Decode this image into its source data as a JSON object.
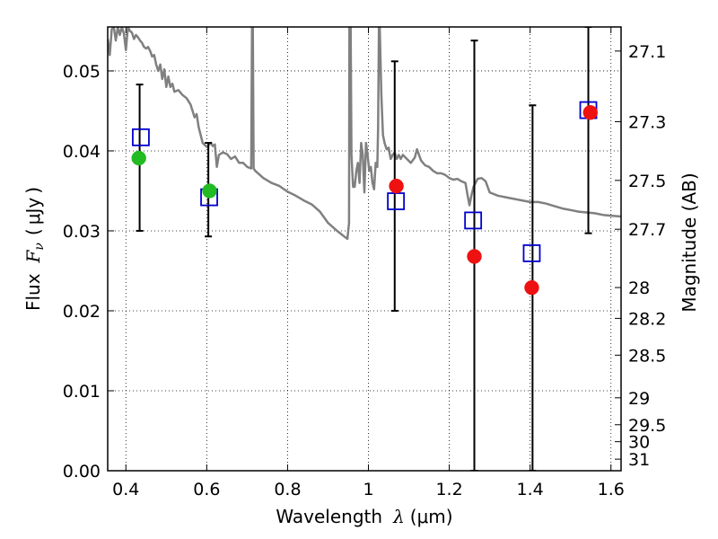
{
  "chart_data": {
    "type": "scatter",
    "title": "",
    "xlabel": "Wavelength",
    "xlabel_symbol": "λ",
    "xlabel_unit": "μm",
    "ylabel": "Flux",
    "ylabel_symbol": "F",
    "ylabel_subscript": "ν",
    "ylabel_unit": "μJy",
    "y2label": "Magnitude (AB)",
    "xlim": [
      0.355,
      1.625
    ],
    "ylim": [
      0.0,
      0.0555
    ],
    "grid": true,
    "grid_style": "dotted",
    "x_ticks": [
      {
        "value": 0.4,
        "label": "0.4"
      },
      {
        "value": 0.6,
        "label": "0.6"
      },
      {
        "value": 0.8,
        "label": "0.8"
      },
      {
        "value": 1.0,
        "label": "1"
      },
      {
        "value": 1.2,
        "label": "1.2"
      },
      {
        "value": 1.4,
        "label": "1.4"
      },
      {
        "value": 1.6,
        "label": "1.6"
      }
    ],
    "y_ticks": [
      {
        "value": 0.0,
        "label": "0.00"
      },
      {
        "value": 0.01,
        "label": "0.01"
      },
      {
        "value": 0.02,
        "label": "0.02"
      },
      {
        "value": 0.03,
        "label": "0.03"
      },
      {
        "value": 0.04,
        "label": "0.04"
      },
      {
        "value": 0.05,
        "label": "0.05"
      }
    ],
    "y2_ticks": [
      {
        "mag": 27.1,
        "label": "27.1"
      },
      {
        "mag": 27.3,
        "label": "27.3"
      },
      {
        "mag": 27.5,
        "label": "27.5"
      },
      {
        "mag": 27.7,
        "label": "27.7"
      },
      {
        "mag": 28,
        "label": "28"
      },
      {
        "mag": 28.2,
        "label": "28.2"
      },
      {
        "mag": 28.5,
        "label": "28.5"
      },
      {
        "mag": 29,
        "label": "29"
      },
      {
        "mag": 29.5,
        "label": "29.5"
      },
      {
        "mag": 30,
        "label": "30"
      },
      {
        "mag": 31,
        "label": "31"
      }
    ],
    "series": [
      {
        "kind": "line",
        "color": "#808080",
        "points": [
          [
            0.355,
            0.054
          ],
          [
            0.36,
            0.052
          ],
          [
            0.365,
            0.0552
          ],
          [
            0.37,
            0.0555
          ],
          [
            0.375,
            0.0538
          ],
          [
            0.38,
            0.0555
          ],
          [
            0.385,
            0.0545
          ],
          [
            0.39,
            0.0555
          ],
          [
            0.395,
            0.0547
          ],
          [
            0.4,
            0.0526
          ],
          [
            0.405,
            0.0555
          ],
          [
            0.41,
            0.055
          ],
          [
            0.415,
            0.0548
          ],
          [
            0.42,
            0.054
          ],
          [
            0.425,
            0.0545
          ],
          [
            0.43,
            0.0542
          ],
          [
            0.435,
            0.0538
          ],
          [
            0.44,
            0.0535
          ],
          [
            0.445,
            0.053
          ],
          [
            0.45,
            0.0528
          ],
          [
            0.455,
            0.053
          ],
          [
            0.46,
            0.0525
          ],
          [
            0.465,
            0.0518
          ],
          [
            0.47,
            0.052
          ],
          [
            0.475,
            0.0508
          ],
          [
            0.48,
            0.05
          ],
          [
            0.485,
            0.0508
          ],
          [
            0.49,
            0.049
          ],
          [
            0.495,
            0.0502
          ],
          [
            0.5,
            0.048
          ],
          [
            0.505,
            0.0493
          ],
          [
            0.51,
            0.048
          ],
          [
            0.515,
            0.0484
          ],
          [
            0.52,
            0.0474
          ],
          [
            0.53,
            0.0476
          ],
          [
            0.54,
            0.047
          ],
          [
            0.55,
            0.0466
          ],
          [
            0.56,
            0.0458
          ],
          [
            0.57,
            0.0442
          ],
          [
            0.575,
            0.0446
          ],
          [
            0.58,
            0.043
          ],
          [
            0.59,
            0.041
          ],
          [
            0.6,
            0.0405
          ],
          [
            0.61,
            0.041
          ],
          [
            0.615,
            0.0406
          ],
          [
            0.62,
            0.0408
          ],
          [
            0.625,
            0.038
          ],
          [
            0.63,
            0.0395
          ],
          [
            0.64,
            0.0398
          ],
          [
            0.65,
            0.0396
          ],
          [
            0.66,
            0.039
          ],
          [
            0.67,
            0.0393
          ],
          [
            0.68,
            0.0385
          ],
          [
            0.69,
            0.0385
          ],
          [
            0.7,
            0.038
          ],
          [
            0.71,
            0.0378
          ],
          [
            0.712,
            0.0555
          ],
          [
            0.714,
            0.0555
          ],
          [
            0.716,
            0.0378
          ],
          [
            0.72,
            0.0375
          ],
          [
            0.74,
            0.0366
          ],
          [
            0.76,
            0.036
          ],
          [
            0.78,
            0.0356
          ],
          [
            0.8,
            0.0349
          ],
          [
            0.82,
            0.0344
          ],
          [
            0.84,
            0.0338
          ],
          [
            0.86,
            0.0333
          ],
          [
            0.88,
            0.0324
          ],
          [
            0.9,
            0.031
          ],
          [
            0.92,
            0.0301
          ],
          [
            0.94,
            0.0293
          ],
          [
            0.948,
            0.029
          ],
          [
            0.952,
            0.031
          ],
          [
            0.953,
            0.0555
          ],
          [
            0.956,
            0.0555
          ],
          [
            0.958,
            0.0395
          ],
          [
            0.962,
            0.0355
          ],
          [
            0.966,
            0.0355
          ],
          [
            0.97,
            0.0375
          ],
          [
            0.974,
            0.0385
          ],
          [
            0.978,
            0.036
          ],
          [
            0.982,
            0.041
          ],
          [
            0.986,
            0.0395
          ],
          [
            0.99,
            0.0348
          ],
          [
            0.994,
            0.041
          ],
          [
            0.998,
            0.0395
          ],
          [
            1.002,
            0.0375
          ],
          [
            1.006,
            0.038
          ],
          [
            1.01,
            0.036
          ],
          [
            1.014,
            0.0352
          ],
          [
            1.018,
            0.0385
          ],
          [
            1.022,
            0.038
          ],
          [
            1.024,
            0.043
          ],
          [
            1.026,
            0.0555
          ],
          [
            1.028,
            0.0555
          ],
          [
            1.032,
            0.047
          ],
          [
            1.036,
            0.042
          ],
          [
            1.04,
            0.041
          ],
          [
            1.045,
            0.0402
          ],
          [
            1.05,
            0.0404
          ],
          [
            1.055,
            0.039
          ],
          [
            1.06,
            0.0395
          ],
          [
            1.065,
            0.0398
          ],
          [
            1.07,
            0.039
          ],
          [
            1.075,
            0.0395
          ],
          [
            1.08,
            0.039
          ],
          [
            1.085,
            0.0395
          ],
          [
            1.095,
            0.039
          ],
          [
            1.105,
            0.0385
          ],
          [
            1.115,
            0.0392
          ],
          [
            1.12,
            0.0402
          ],
          [
            1.13,
            0.0388
          ],
          [
            1.14,
            0.0382
          ],
          [
            1.15,
            0.038
          ],
          [
            1.16,
            0.0375
          ],
          [
            1.17,
            0.0372
          ],
          [
            1.18,
            0.0372
          ],
          [
            1.19,
            0.037
          ],
          [
            1.2,
            0.0366
          ],
          [
            1.21,
            0.0364
          ],
          [
            1.22,
            0.0365
          ],
          [
            1.23,
            0.0362
          ],
          [
            1.24,
            0.036
          ],
          [
            1.245,
            0.0345
          ],
          [
            1.25,
            0.0332
          ],
          [
            1.255,
            0.0345
          ],
          [
            1.26,
            0.0355
          ],
          [
            1.265,
            0.036
          ],
          [
            1.27,
            0.0365
          ],
          [
            1.28,
            0.0366
          ],
          [
            1.29,
            0.0362
          ],
          [
            1.3,
            0.0348
          ],
          [
            1.31,
            0.0346
          ],
          [
            1.32,
            0.0344
          ],
          [
            1.33,
            0.0343
          ],
          [
            1.34,
            0.0342
          ],
          [
            1.36,
            0.034
          ],
          [
            1.38,
            0.0338
          ],
          [
            1.4,
            0.0336
          ],
          [
            1.42,
            0.0336
          ],
          [
            1.44,
            0.0334
          ],
          [
            1.46,
            0.0331
          ],
          [
            1.48,
            0.0328
          ],
          [
            1.5,
            0.0326
          ],
          [
            1.52,
            0.0324
          ],
          [
            1.54,
            0.0323
          ],
          [
            1.56,
            0.0322
          ],
          [
            1.58,
            0.032
          ],
          [
            1.6,
            0.0319
          ],
          [
            1.625,
            0.0318
          ]
        ]
      },
      {
        "kind": "errorbar",
        "color": "#000000",
        "points": [
          {
            "x": 0.434,
            "y": 0.039,
            "ylow": 0.03,
            "yhigh": 0.0483
          },
          {
            "x": 0.604,
            "y": 0.035,
            "ylow": 0.0293,
            "yhigh": 0.041
          },
          {
            "x": 1.065,
            "y": 0.0356,
            "ylow": 0.02,
            "yhigh": 0.0512
          },
          {
            "x": 1.262,
            "y": 0.0268,
            "ylow": 0.0,
            "yhigh": 0.0538
          },
          {
            "x": 1.406,
            "y": 0.0229,
            "ylow": 0.0,
            "yhigh": 0.0457
          },
          {
            "x": 1.544,
            "y": 0.0448,
            "ylow": 0.0297,
            "yhigh": 0.0555
          }
        ]
      },
      {
        "kind": "open-square",
        "color": "#0000cc",
        "points": [
          [
            0.437,
            0.0417
          ],
          [
            0.606,
            0.0342
          ],
          [
            1.068,
            0.0337
          ],
          [
            1.259,
            0.0313
          ],
          [
            1.404,
            0.0272
          ],
          [
            1.544,
            0.0451
          ]
        ]
      },
      {
        "kind": "filled-circle",
        "color": "#22bb22",
        "points": [
          [
            0.432,
            0.0391
          ],
          [
            0.607,
            0.035
          ]
        ]
      },
      {
        "kind": "filled-circle",
        "color": "#ee1111",
        "points": [
          [
            1.069,
            0.0356
          ],
          [
            1.262,
            0.0268
          ],
          [
            1.404,
            0.0229
          ],
          [
            1.549,
            0.0448
          ]
        ]
      }
    ]
  }
}
